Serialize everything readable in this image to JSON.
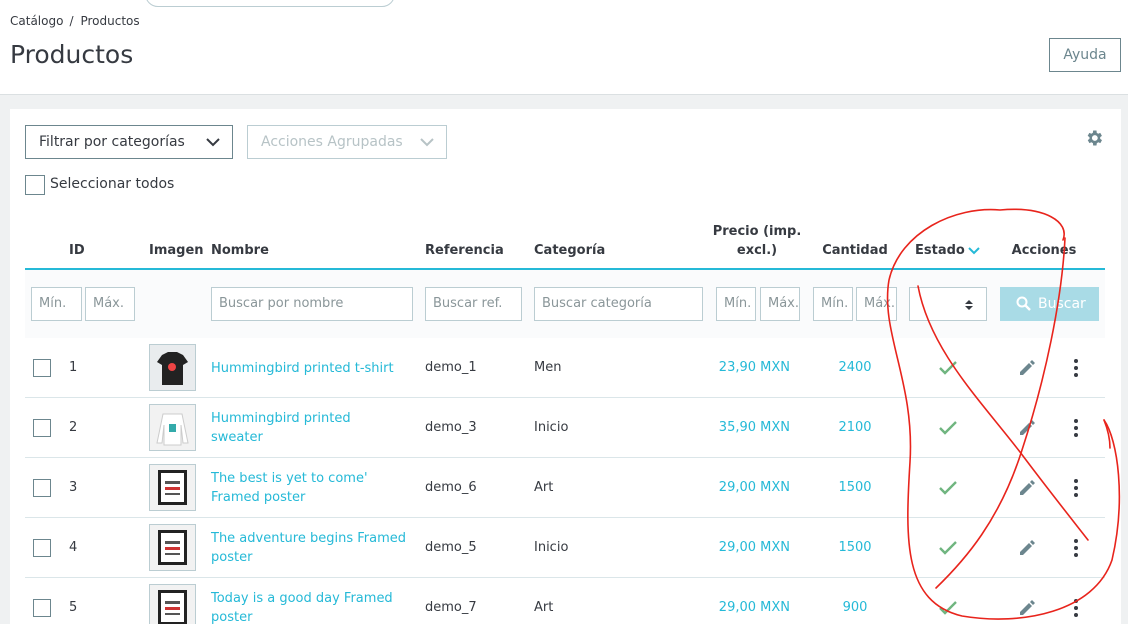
{
  "breadcrumb": [
    "Catálogo",
    "Productos"
  ],
  "header": {
    "title": "Productos",
    "help": "Ayuda"
  },
  "toolbar": {
    "category_filter": "Filtrar por categorías",
    "bulk_actions": "Acciones Agrupadas",
    "select_all": "Seleccionar todos"
  },
  "table": {
    "columns": [
      "ID",
      "Imagen",
      "Nombre",
      "Referencia",
      "Categoría",
      "Precio (imp. excl.)",
      "Cantidad",
      "Estado",
      "Acciones"
    ],
    "filters": {
      "id_min": "Mín.",
      "id_max": "Máx.",
      "name": "Buscar por nombre",
      "reference": "Buscar ref.",
      "category": "Buscar categoría",
      "price_min": "Mín.",
      "price_max": "Máx.",
      "quantity_min": "Mín.",
      "quantity_max": "Máx.",
      "search": "Buscar"
    },
    "rows": [
      {
        "id": 1,
        "name": "Hummingbird printed t-shirt",
        "reference": "demo_1",
        "category": "Men",
        "price": "23,90 MXN",
        "quantity": 2400
      },
      {
        "id": 2,
        "name": "Hummingbird printed sweater",
        "reference": "demo_3",
        "category": "Inicio",
        "price": "35,90 MXN",
        "quantity": 2100
      },
      {
        "id": 3,
        "name": "The best is yet to come' Framed poster",
        "reference": "demo_6",
        "category": "Art",
        "price": "29,00 MXN",
        "quantity": 1500
      },
      {
        "id": 4,
        "name": "The adventure begins Framed poster",
        "reference": "demo_5",
        "category": "Inicio",
        "price": "29,00 MXN",
        "quantity": 1500
      },
      {
        "id": 5,
        "name": "Today is a good day Framed poster",
        "reference": "demo_7",
        "category": "Art",
        "price": "29,00 MXN",
        "quantity": 900
      }
    ]
  }
}
